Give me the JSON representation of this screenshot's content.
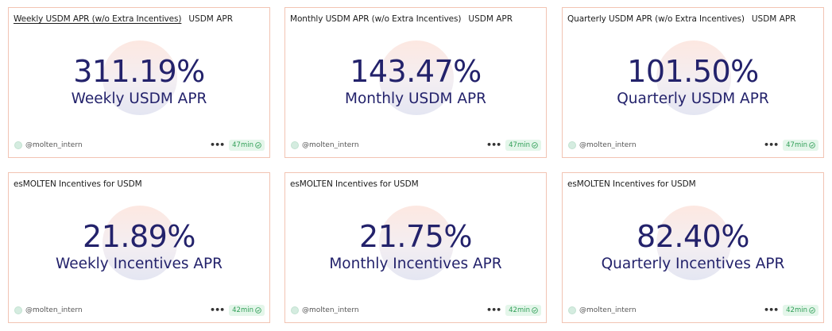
{
  "cards": [
    {
      "title": "Weekly USDM APR (w/o Extra Incentives)",
      "tab": "USDM APR",
      "value": "311.19%",
      "label": "Weekly USDM APR",
      "author": "@molten_intern",
      "age": "47min"
    },
    {
      "title": "Monthly USDM APR (w/o Extra Incentives)",
      "tab": "USDM APR",
      "value": "143.47%",
      "label": "Monthly USDM APR",
      "author": "@molten_intern",
      "age": "47min"
    },
    {
      "title": "Quarterly USDM APR (w/o Extra Incentives)",
      "tab": "USDM APR",
      "value": "101.50%",
      "label": "Quarterly USDM APR",
      "author": "@molten_intern",
      "age": "47min"
    },
    {
      "title": "esMOLTEN Incentives for USDM",
      "value": "21.89%",
      "label": "Weekly Incentives APR",
      "author": "@molten_intern",
      "age": "42min"
    },
    {
      "title": "esMOLTEN Incentives for USDM",
      "value": "21.75%",
      "label": "Monthly Incentives APR",
      "author": "@molten_intern",
      "age": "42min"
    },
    {
      "title": "esMOLTEN Incentives for USDM",
      "value": "82.40%",
      "label": "Quarterly Incentives APR",
      "author": "@molten_intern",
      "age": "42min"
    }
  ],
  "more_icon": "ellipsis-icon",
  "badge_icon": "check-circle-icon",
  "colors": {
    "value_text": "#23226b",
    "card_border": "#f2c4b3",
    "badge_bg": "#e4f6ea",
    "badge_text": "#2f9e56"
  }
}
